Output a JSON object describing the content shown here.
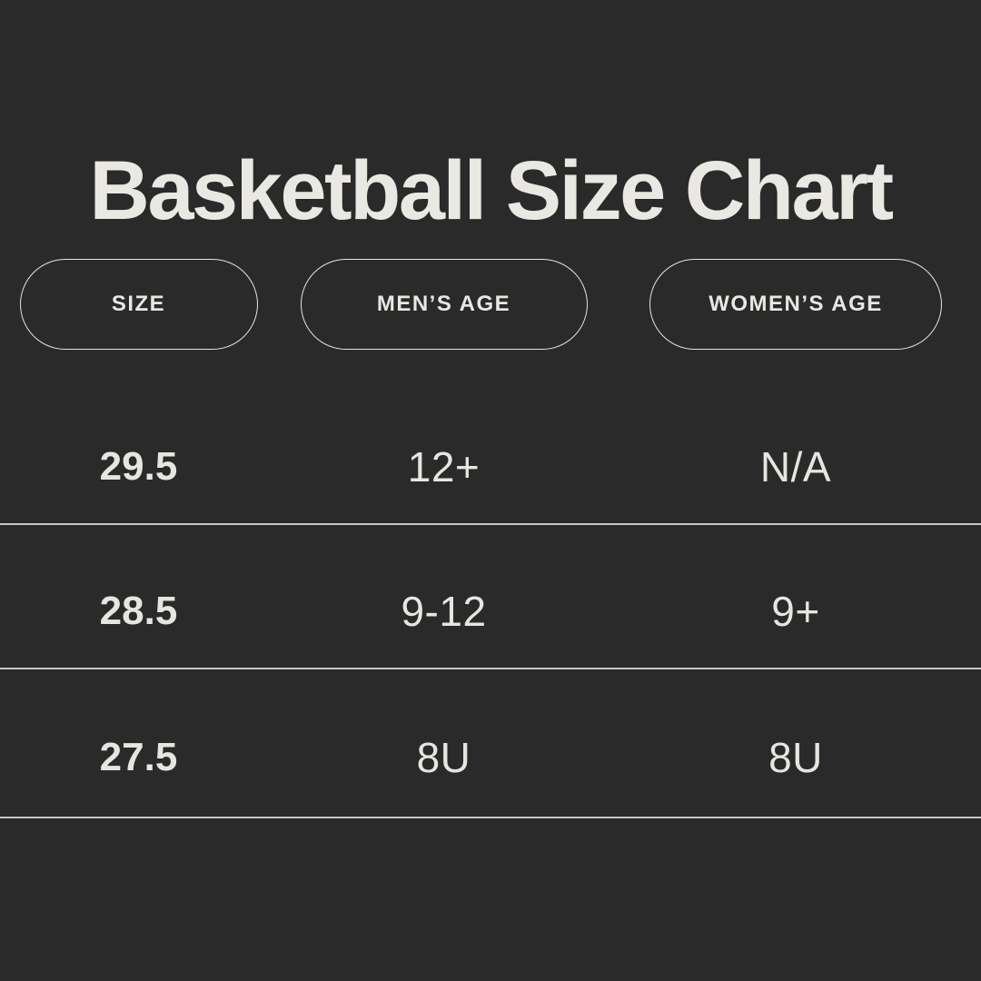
{
  "title": "Basketball Size Chart",
  "colors": {
    "background": "#2a2a2a",
    "text": "#e9e7e1",
    "divider": "#e2e0da",
    "pill_border": "#e6e4de"
  },
  "columns": [
    {
      "label": "SIZE"
    },
    {
      "label": "MEN’S AGE"
    },
    {
      "label": "WOMEN’S AGE"
    }
  ],
  "rows": [
    {
      "size": "29.5",
      "mens_age": "12+",
      "womens_age": "N/A"
    },
    {
      "size": "28.5",
      "mens_age": "9-12",
      "womens_age": "9+"
    },
    {
      "size": "27.5",
      "mens_age": "8U",
      "womens_age": "8U"
    }
  ],
  "chart_data": {
    "type": "table",
    "title": "Basketball Size Chart",
    "columns": [
      "SIZE",
      "MEN'S AGE",
      "WOMEN'S AGE"
    ],
    "rows": [
      [
        "29.5",
        "12+",
        "N/A"
      ],
      [
        "28.5",
        "9-12",
        "9+"
      ],
      [
        "27.5",
        "8U",
        "8U"
      ]
    ]
  }
}
